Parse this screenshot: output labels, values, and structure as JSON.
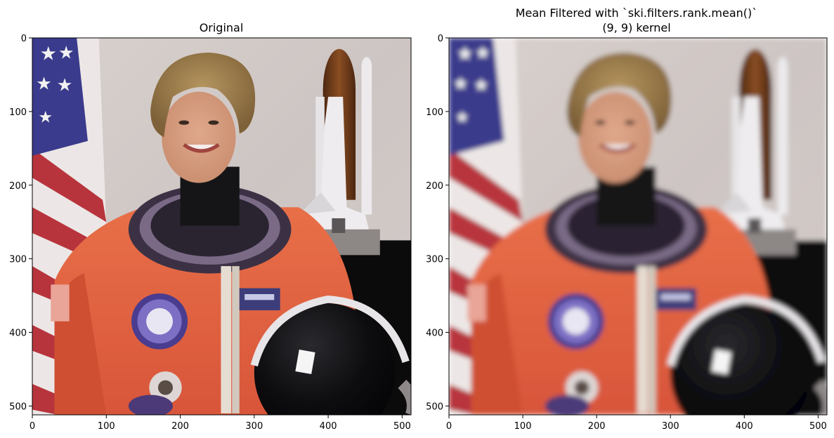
{
  "figure": {
    "panels": [
      {
        "id": "original",
        "title_lines": [
          "Original"
        ],
        "image_description_token": "astronaut-photo",
        "x_ticks": [
          "0",
          "100",
          "200",
          "300",
          "400",
          "500"
        ],
        "y_ticks": [
          "0",
          "100",
          "200",
          "300",
          "400",
          "500"
        ],
        "blurred": false
      },
      {
        "id": "mean-filtered",
        "title_lines": [
          "Mean Filtered with `ski.filters.rank.mean()`",
          "(9, 9) kernel"
        ],
        "image_description_token": "astronaut-photo-blurred",
        "x_ticks": [
          "0",
          "100",
          "200",
          "300",
          "400",
          "500"
        ],
        "y_ticks": [
          "0",
          "100",
          "200",
          "300",
          "400",
          "500"
        ],
        "blurred": true
      }
    ],
    "axis_range": [
      0,
      512
    ],
    "colors": {
      "suit_orange": "#e2633f",
      "background_beige": "#d8d0cc",
      "flag_blue": "#3a3b8c",
      "flag_red": "#b8343c",
      "hair": "#9a7c4d",
      "skin": "#d9a084",
      "helmet_black": "#0c0c0e",
      "collar_purple": "#5a4c66",
      "shuttle_white": "#eceaec",
      "tank_brown": "#6b3a1e",
      "backdrop_black": "#0b0b0b"
    }
  }
}
